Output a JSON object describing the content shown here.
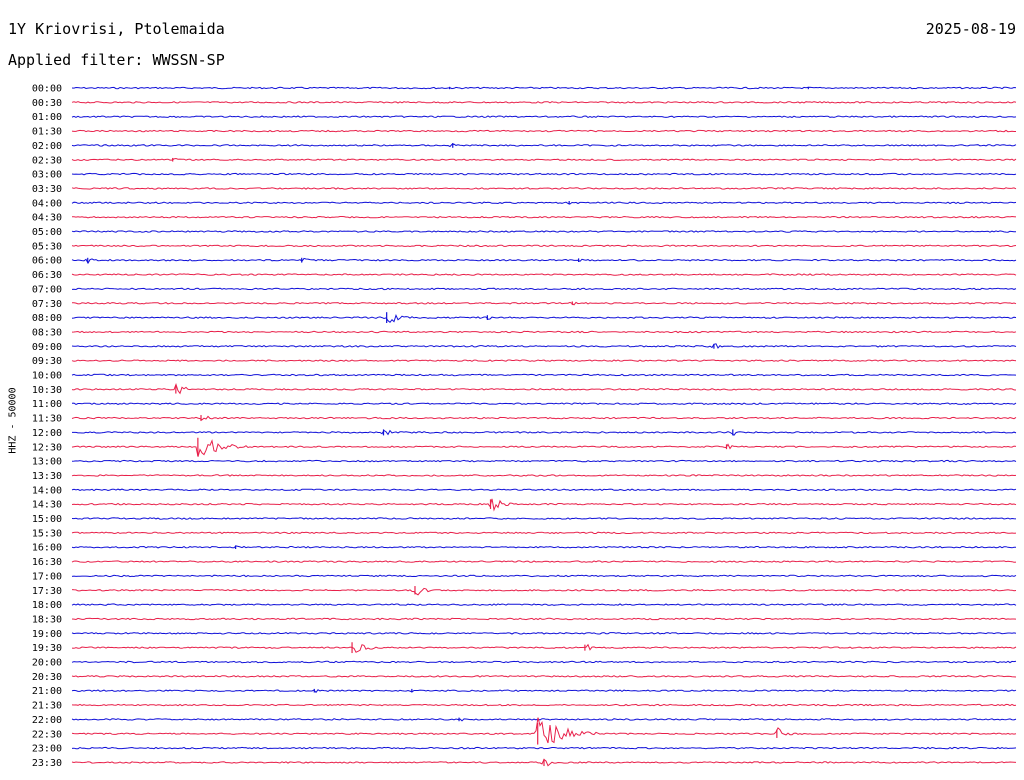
{
  "header": {
    "station": "1Y Kriovrisi, Ptolemaida",
    "date": "2025-08-19",
    "filter": "Applied filter: WWSSN-SP"
  },
  "colors": {
    "odd": "#1010d8",
    "even": "#e8204a"
  },
  "chart_data": {
    "type": "line",
    "title": "1Y Kriovrisi, Ptolemaida",
    "ylabel": "HHZ - 50000",
    "row_labels": [
      "00:00",
      "00:30",
      "01:00",
      "01:30",
      "02:00",
      "02:30",
      "03:00",
      "03:30",
      "04:00",
      "04:30",
      "05:00",
      "05:30",
      "06:00",
      "06:30",
      "07:00",
      "07:30",
      "08:00",
      "08:30",
      "09:00",
      "09:30",
      "10:00",
      "10:30",
      "11:00",
      "11:30",
      "12:00",
      "12:30",
      "13:00",
      "13:30",
      "14:00",
      "14:30",
      "15:00",
      "15:30",
      "16:00",
      "16:30",
      "17:00",
      "17:30",
      "18:00",
      "18:30",
      "19:00",
      "19:30",
      "20:00",
      "20:30",
      "21:00",
      "21:30",
      "22:00",
      "22:30",
      "23:00",
      "23:30"
    ],
    "row_minutes": 30,
    "events": [
      {
        "row": 0,
        "minute": 12.0,
        "amplitude": 2
      },
      {
        "row": 0,
        "minute": 23.4,
        "amplitude": 2
      },
      {
        "row": 4,
        "minute": 12.1,
        "amplitude": 4
      },
      {
        "row": 5,
        "minute": 3.2,
        "amplitude": 3
      },
      {
        "row": 8,
        "minute": 15.8,
        "amplitude": 3
      },
      {
        "row": 12,
        "minute": 0.5,
        "amplitude": 4
      },
      {
        "row": 12,
        "minute": 7.3,
        "amplitude": 4
      },
      {
        "row": 12,
        "minute": 16.1,
        "amplitude": 3
      },
      {
        "row": 15,
        "minute": 15.9,
        "amplitude": 3
      },
      {
        "row": 16,
        "minute": 10.0,
        "amplitude": 9
      },
      {
        "row": 16,
        "minute": 13.2,
        "amplitude": 4
      },
      {
        "row": 18,
        "minute": 20.4,
        "amplitude": 4
      },
      {
        "row": 21,
        "minute": 3.3,
        "amplitude": 7
      },
      {
        "row": 23,
        "minute": 4.1,
        "amplitude": 5
      },
      {
        "row": 24,
        "minute": 9.9,
        "amplitude": 5
      },
      {
        "row": 24,
        "minute": 21.0,
        "amplitude": 5
      },
      {
        "row": 25,
        "minute": 4.0,
        "amplitude": 15
      },
      {
        "row": 25,
        "minute": 20.8,
        "amplitude": 4
      },
      {
        "row": 29,
        "minute": 13.3,
        "amplitude": 8
      },
      {
        "row": 32,
        "minute": 5.2,
        "amplitude": 3
      },
      {
        "row": 35,
        "minute": 10.9,
        "amplitude": 7
      },
      {
        "row": 39,
        "minute": 8.9,
        "amplitude": 9
      },
      {
        "row": 39,
        "minute": 16.3,
        "amplitude": 5
      },
      {
        "row": 42,
        "minute": 7.7,
        "amplitude": 3
      },
      {
        "row": 42,
        "minute": 10.8,
        "amplitude": 3
      },
      {
        "row": 44,
        "minute": 12.3,
        "amplitude": 3
      },
      {
        "row": 45,
        "minute": 14.8,
        "amplitude": 18
      },
      {
        "row": 45,
        "minute": 22.4,
        "amplitude": 7
      },
      {
        "row": 47,
        "minute": 15.0,
        "amplitude": 6
      }
    ]
  }
}
